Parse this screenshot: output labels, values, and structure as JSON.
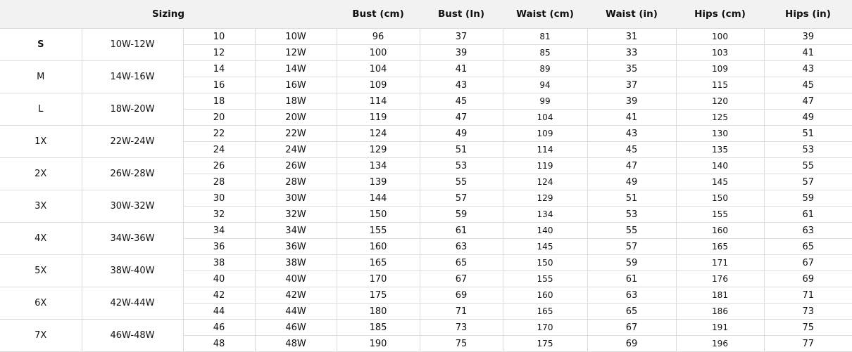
{
  "headers": {
    "sizing": "Sizing",
    "columns": [
      "Bust (cm)",
      "Bust (In)",
      "Waist (cm)",
      "Waist (in)",
      "Hips (cm)",
      "Hips (in)"
    ]
  },
  "groups": [
    {
      "size": "S",
      "range": "10W-12W",
      "bold": true,
      "rows": [
        [
          "10",
          "10W",
          "96",
          "37",
          "81",
          "31",
          "100",
          "39"
        ],
        [
          "12",
          "12W",
          "100",
          "39",
          "85",
          "33",
          "103",
          "41"
        ]
      ]
    },
    {
      "size": "M",
      "range": "14W-16W",
      "rows": [
        [
          "14",
          "14W",
          "104",
          "41",
          "89",
          "35",
          "109",
          "43"
        ],
        [
          "16",
          "16W",
          "109",
          "43",
          "94",
          "37",
          "115",
          "45"
        ]
      ]
    },
    {
      "size": "L",
      "range": "18W-20W",
      "rows": [
        [
          "18",
          "18W",
          "114",
          "45",
          "99",
          "39",
          "120",
          "47"
        ],
        [
          "20",
          "20W",
          "119",
          "47",
          "104",
          "41",
          "125",
          "49"
        ]
      ]
    },
    {
      "size": "1X",
      "range": "22W-24W",
      "rows": [
        [
          "22",
          "22W",
          "124",
          "49",
          "109",
          "43",
          "130",
          "51"
        ],
        [
          "24",
          "24W",
          "129",
          "51",
          "114",
          "45",
          "135",
          "53"
        ]
      ]
    },
    {
      "size": "2X",
      "range": "26W-28W",
      "rows": [
        [
          "26",
          "26W",
          "134",
          "53",
          "119",
          "47",
          "140",
          "55"
        ],
        [
          "28",
          "28W",
          "139",
          "55",
          "124",
          "49",
          "145",
          "57"
        ]
      ]
    },
    {
      "size": "3X",
      "range": "30W-32W",
      "rows": [
        [
          "30",
          "30W",
          "144",
          "57",
          "129",
          "51",
          "150",
          "59"
        ],
        [
          "32",
          "32W",
          "150",
          "59",
          "134",
          "53",
          "155",
          "61"
        ]
      ]
    },
    {
      "size": "4X",
      "range": "34W-36W",
      "rows": [
        [
          "34",
          "34W",
          "155",
          "61",
          "140",
          "55",
          "160",
          "63"
        ],
        [
          "36",
          "36W",
          "160",
          "63",
          "145",
          "57",
          "165",
          "65"
        ]
      ]
    },
    {
      "size": "5X",
      "range": "38W-40W",
      "rows": [
        [
          "38",
          "38W",
          "165",
          "65",
          "150",
          "59",
          "171",
          "67"
        ],
        [
          "40",
          "40W",
          "170",
          "67",
          "155",
          "61",
          "176",
          "69"
        ]
      ]
    },
    {
      "size": "6X",
      "range": "42W-44W",
      "rows": [
        [
          "42",
          "42W",
          "175",
          "69",
          "160",
          "63",
          "181",
          "71"
        ],
        [
          "44",
          "44W",
          "180",
          "71",
          "165",
          "65",
          "186",
          "73"
        ]
      ]
    },
    {
      "size": "7X",
      "range": "46W-48W",
      "rows": [
        [
          "46",
          "46W",
          "185",
          "73",
          "170",
          "67",
          "191",
          "75"
        ],
        [
          "48",
          "48W",
          "190",
          "75",
          "175",
          "69",
          "196",
          "77"
        ]
      ]
    }
  ],
  "colors": {
    "header_bg": "#f2f2f2",
    "border": "#dcdcdc"
  }
}
